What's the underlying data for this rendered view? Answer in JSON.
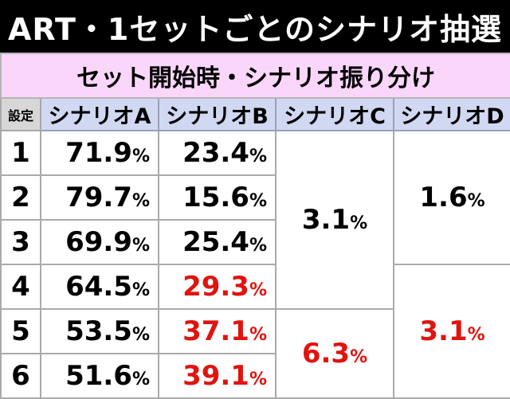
{
  "title": "ART・1セットごとのシナリオ抽選",
  "subtitle": "セット開始時・シナリオ振り分け",
  "headers": {
    "setting": "設定",
    "a": "シナリオA",
    "b": "シナリオB",
    "c": "シナリオC",
    "d": "シナリオD"
  },
  "percent_sign": "%",
  "rows": [
    {
      "setting": "1",
      "a": "71.9",
      "b": "23.4"
    },
    {
      "setting": "2",
      "a": "79.7",
      "b": "15.6"
    },
    {
      "setting": "3",
      "a": "69.9",
      "b": "25.4"
    },
    {
      "setting": "4",
      "a": "64.5",
      "b": "29.3"
    },
    {
      "setting": "5",
      "a": "53.5",
      "b": "37.1"
    },
    {
      "setting": "6",
      "a": "51.6",
      "b": "39.1"
    }
  ],
  "merged": {
    "c_1_4": "3.1",
    "c_5_6": "6.3",
    "d_1_3": "1.6",
    "d_4_6": "3.1"
  },
  "colors": {
    "highlight": "#e0140f",
    "subtitle_bg": "#fbd6fb",
    "header_bg": "#d0d8f2",
    "setting_header_bg": "#d7d7d7"
  }
}
